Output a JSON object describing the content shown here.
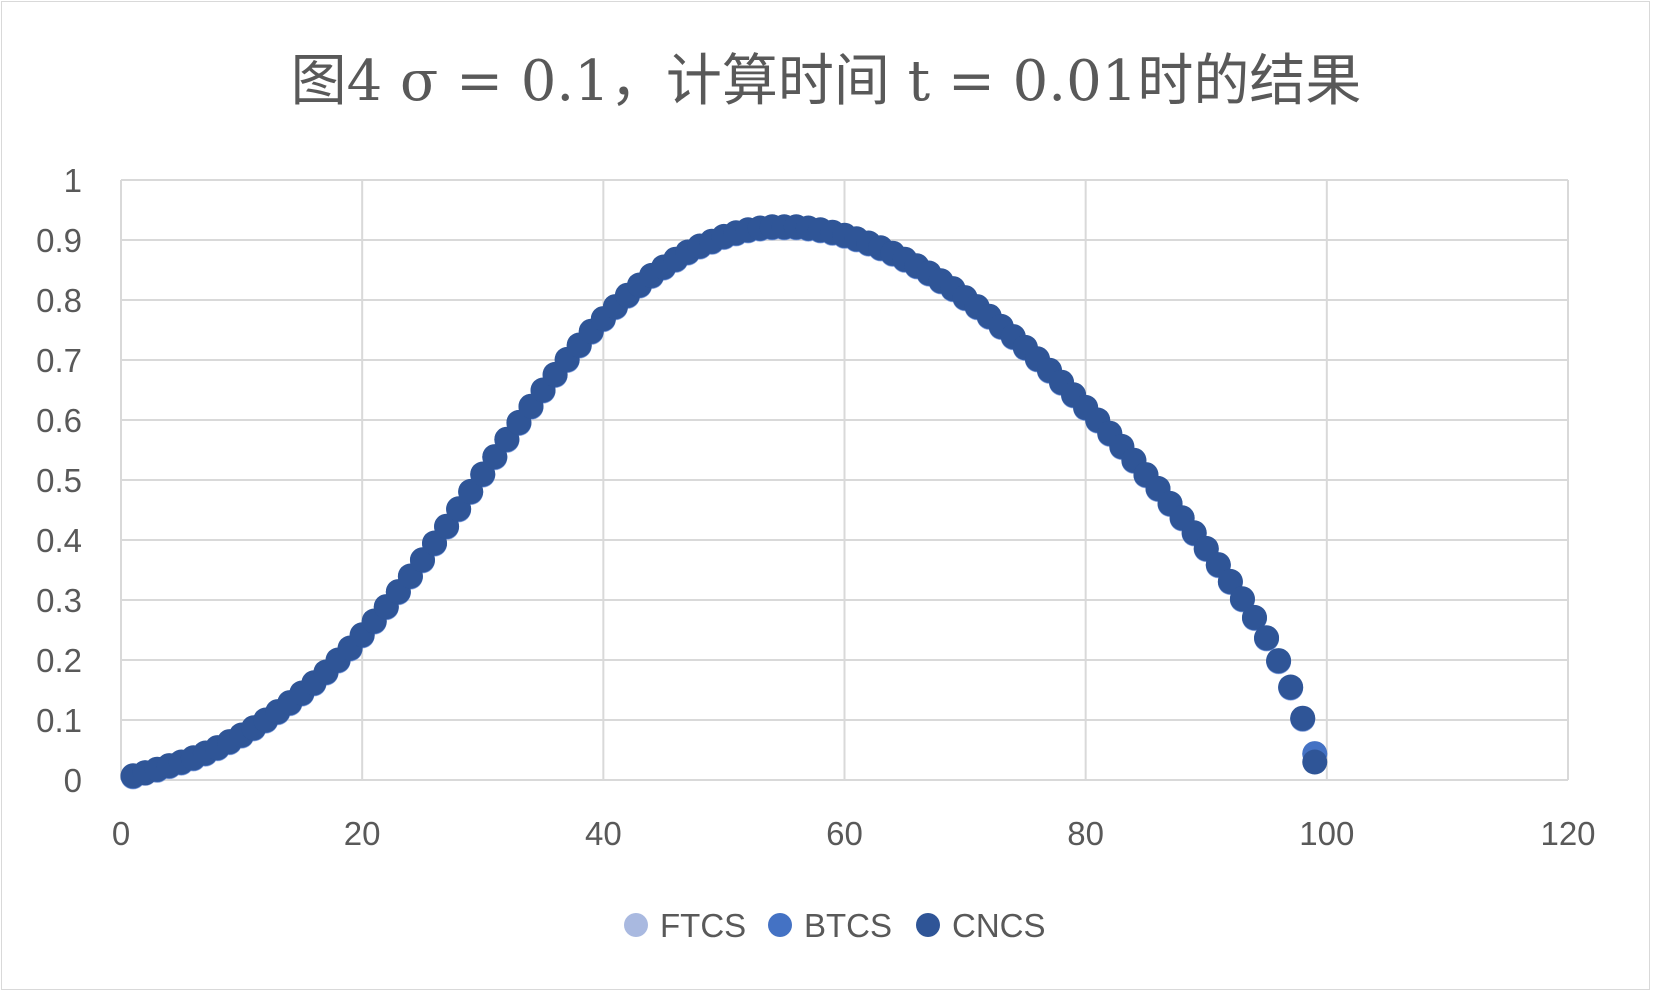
{
  "chart_data": {
    "type": "scatter",
    "title": "图4  σ = 0.1，计算时间 t = 0.01时的结果",
    "xlabel": "",
    "ylabel": "",
    "xlim": [
      0,
      120
    ],
    "ylim": [
      0,
      1
    ],
    "x_ticks": [
      "0",
      "20",
      "40",
      "60",
      "80",
      "100",
      "120"
    ],
    "y_ticks": [
      "0",
      "0.1",
      "0.2",
      "0.3",
      "0.4",
      "0.5",
      "0.6",
      "0.7",
      "0.8",
      "0.9",
      "1"
    ],
    "grid": true,
    "legend_position": "bottom",
    "x": [
      1,
      2,
      3,
      4,
      5,
      6,
      7,
      8,
      9,
      10,
      11,
      12,
      13,
      14,
      15,
      16,
      17,
      18,
      19,
      20,
      21,
      22,
      23,
      24,
      25,
      26,
      27,
      28,
      29,
      30,
      31,
      32,
      33,
      34,
      35,
      36,
      37,
      38,
      39,
      40,
      41,
      42,
      43,
      44,
      45,
      46,
      47,
      48,
      49,
      50,
      51,
      52,
      53,
      54,
      55,
      56,
      57,
      58,
      59,
      60,
      61,
      62,
      63,
      64,
      65,
      66,
      67,
      68,
      69,
      70,
      71,
      72,
      73,
      74,
      75,
      76,
      77,
      78,
      79,
      80,
      81,
      82,
      83,
      84,
      85,
      86,
      87,
      88,
      89,
      90,
      91,
      92,
      93,
      94,
      95,
      96,
      97,
      98,
      99
    ],
    "series": [
      {
        "name": "FTCS",
        "color": "#a9b9e0",
        "values": [
          0.005,
          0.011,
          0.016,
          0.022,
          0.028,
          0.035,
          0.043,
          0.052,
          0.062,
          0.073,
          0.085,
          0.098,
          0.112,
          0.127,
          0.143,
          0.16,
          0.178,
          0.198,
          0.218,
          0.24,
          0.263,
          0.287,
          0.312,
          0.338,
          0.365,
          0.393,
          0.421,
          0.45,
          0.479,
          0.508,
          0.537,
          0.566,
          0.594,
          0.621,
          0.648,
          0.674,
          0.699,
          0.723,
          0.746,
          0.767,
          0.787,
          0.806,
          0.823,
          0.839,
          0.853,
          0.866,
          0.878,
          0.888,
          0.896,
          0.904,
          0.91,
          0.915,
          0.918,
          0.92,
          0.92,
          0.92,
          0.918,
          0.915,
          0.911,
          0.906,
          0.9,
          0.893,
          0.885,
          0.876,
          0.866,
          0.855,
          0.843,
          0.83,
          0.817,
          0.802,
          0.787,
          0.771,
          0.754,
          0.737,
          0.719,
          0.7,
          0.681,
          0.661,
          0.64,
          0.619,
          0.598,
          0.576,
          0.554,
          0.531,
          0.507,
          0.484,
          0.459,
          0.435,
          0.41,
          0.384,
          0.357,
          0.329,
          0.3,
          0.269,
          0.235,
          0.197,
          0.153,
          0.101,
          0.043
        ]
      },
      {
        "name": "BTCS",
        "color": "#4472c4",
        "values": [
          0.006,
          0.012,
          0.017,
          0.023,
          0.029,
          0.036,
          0.044,
          0.053,
          0.063,
          0.074,
          0.086,
          0.099,
          0.113,
          0.128,
          0.144,
          0.161,
          0.179,
          0.199,
          0.219,
          0.241,
          0.264,
          0.288,
          0.313,
          0.339,
          0.366,
          0.394,
          0.422,
          0.451,
          0.48,
          0.509,
          0.538,
          0.567,
          0.595,
          0.622,
          0.649,
          0.675,
          0.7,
          0.724,
          0.747,
          0.768,
          0.788,
          0.807,
          0.824,
          0.84,
          0.854,
          0.867,
          0.879,
          0.889,
          0.897,
          0.905,
          0.911,
          0.916,
          0.919,
          0.921,
          0.921,
          0.921,
          0.919,
          0.916,
          0.912,
          0.907,
          0.901,
          0.894,
          0.886,
          0.877,
          0.867,
          0.856,
          0.844,
          0.831,
          0.818,
          0.803,
          0.788,
          0.772,
          0.755,
          0.738,
          0.72,
          0.701,
          0.682,
          0.662,
          0.641,
          0.62,
          0.599,
          0.577,
          0.555,
          0.532,
          0.508,
          0.485,
          0.46,
          0.436,
          0.411,
          0.385,
          0.358,
          0.33,
          0.301,
          0.27,
          0.236,
          0.198,
          0.154,
          0.102,
          0.044
        ]
      },
      {
        "name": "CNCS",
        "color": "#2f5597",
        "values": [
          0.007,
          0.012,
          0.018,
          0.024,
          0.03,
          0.037,
          0.045,
          0.054,
          0.064,
          0.075,
          0.087,
          0.1,
          0.114,
          0.129,
          0.145,
          0.162,
          0.18,
          0.2,
          0.22,
          0.242,
          0.265,
          0.289,
          0.314,
          0.34,
          0.367,
          0.395,
          0.423,
          0.452,
          0.481,
          0.51,
          0.539,
          0.568,
          0.596,
          0.623,
          0.65,
          0.676,
          0.701,
          0.725,
          0.748,
          0.769,
          0.789,
          0.808,
          0.825,
          0.841,
          0.855,
          0.868,
          0.88,
          0.89,
          0.898,
          0.906,
          0.912,
          0.917,
          0.92,
          0.922,
          0.922,
          0.922,
          0.92,
          0.917,
          0.913,
          0.908,
          0.902,
          0.895,
          0.887,
          0.878,
          0.868,
          0.857,
          0.845,
          0.832,
          0.819,
          0.804,
          0.789,
          0.773,
          0.756,
          0.739,
          0.721,
          0.702,
          0.683,
          0.663,
          0.642,
          0.621,
          0.6,
          0.578,
          0.556,
          0.533,
          0.509,
          0.486,
          0.461,
          0.437,
          0.412,
          0.386,
          0.359,
          0.331,
          0.302,
          0.271,
          0.237,
          0.199,
          0.155,
          0.103,
          0.03
        ]
      }
    ]
  }
}
